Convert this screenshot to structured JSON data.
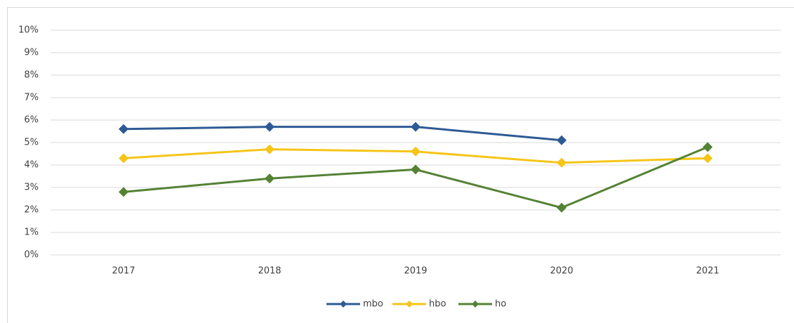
{
  "chart_data": {
    "type": "line",
    "categories": [
      "2017",
      "2018",
      "2019",
      "2020",
      "2021"
    ],
    "series": [
      {
        "name": "mbo",
        "color": "#2e5a94",
        "values": [
          5.6,
          5.7,
          5.7,
          5.1,
          null
        ]
      },
      {
        "name": "hbo",
        "color": "#f5c518",
        "values": [
          4.3,
          4.7,
          4.6,
          4.1,
          4.3
        ]
      },
      {
        "name": "ho",
        "color": "#548235",
        "values": [
          2.8,
          3.4,
          3.8,
          2.1,
          4.8
        ]
      }
    ],
    "ylim": [
      0,
      10
    ],
    "yticks": [
      {
        "value": 0,
        "label": "0%"
      },
      {
        "value": 1,
        "label": "1%"
      },
      {
        "value": 2,
        "label": "2%"
      },
      {
        "value": 3,
        "label": "3%"
      },
      {
        "value": 4,
        "label": "4%"
      },
      {
        "value": 5,
        "label": "5%"
      },
      {
        "value": 6,
        "label": "6%"
      },
      {
        "value": 7,
        "label": "7%"
      },
      {
        "value": 8,
        "label": "8%"
      },
      {
        "value": 9,
        "label": "9%"
      },
      {
        "value": 10,
        "label": "10%"
      }
    ],
    "grid": true,
    "legend": "bottom"
  }
}
